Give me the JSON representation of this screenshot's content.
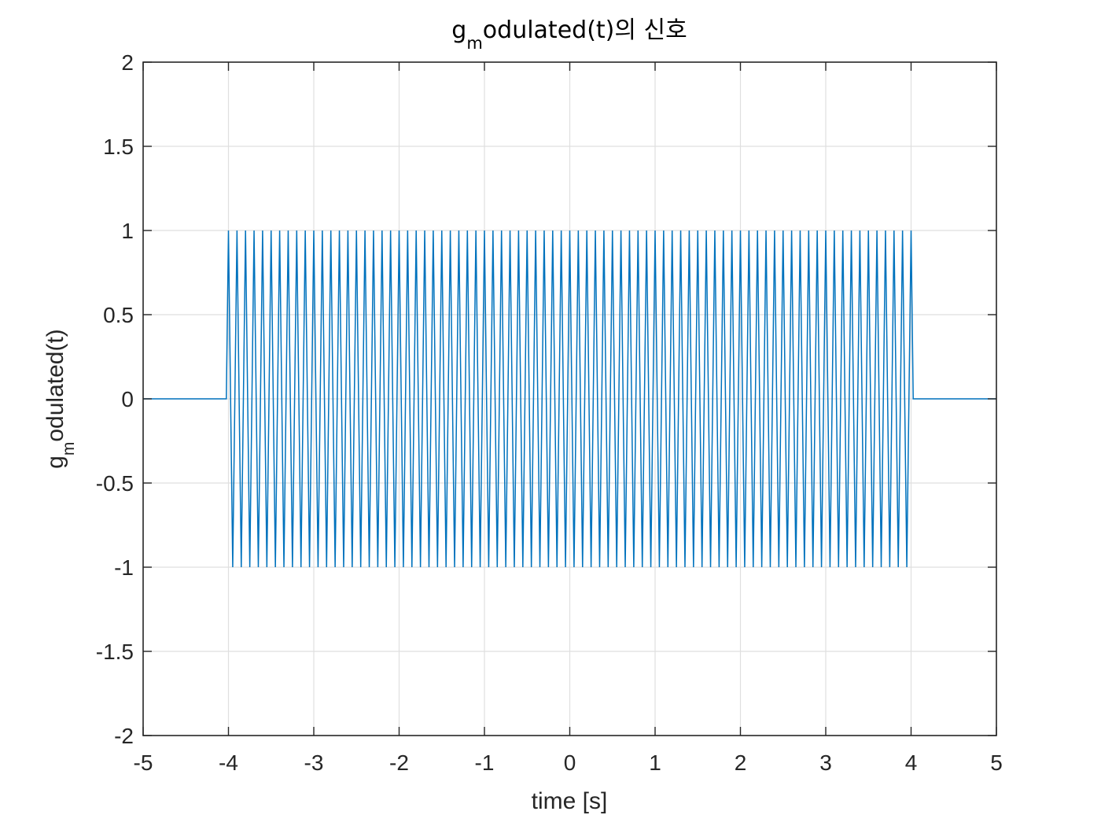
{
  "chart_data": {
    "type": "line",
    "title": {
      "main": "g",
      "sub": "m",
      "rest": "odulated(t)의 신호"
    },
    "xlabel": "time [s]",
    "ylabel": {
      "main": "g",
      "sub": "m",
      "rest": "odulated(t)"
    },
    "xlim": [
      -5,
      5
    ],
    "ylim": [
      -2,
      2
    ],
    "xticks": [
      -5,
      -4,
      -3,
      -2,
      -1,
      0,
      1,
      2,
      3,
      4,
      5
    ],
    "xtick_labels": [
      "-5",
      "-4",
      "-3",
      "-2",
      "-1",
      "0",
      "1",
      "2",
      "3",
      "4",
      "5"
    ],
    "yticks": [
      -2,
      -1.5,
      -1,
      -0.5,
      0,
      0.5,
      1,
      1.5,
      2
    ],
    "ytick_labels": [
      "-2",
      "-1.5",
      "-1",
      "-0.5",
      "0",
      "0.5",
      "1",
      "1.5",
      "2"
    ],
    "grid": true,
    "series": [
      {
        "color": "#0072BD",
        "description_of_values": "cos(2*pi*f*t) for |t| <= 4, 0 elsewhere",
        "carrier_frequency_hz": 10,
        "window": [
          -4,
          4
        ],
        "x_step": 0.025,
        "amplitude": 1
      }
    ]
  }
}
